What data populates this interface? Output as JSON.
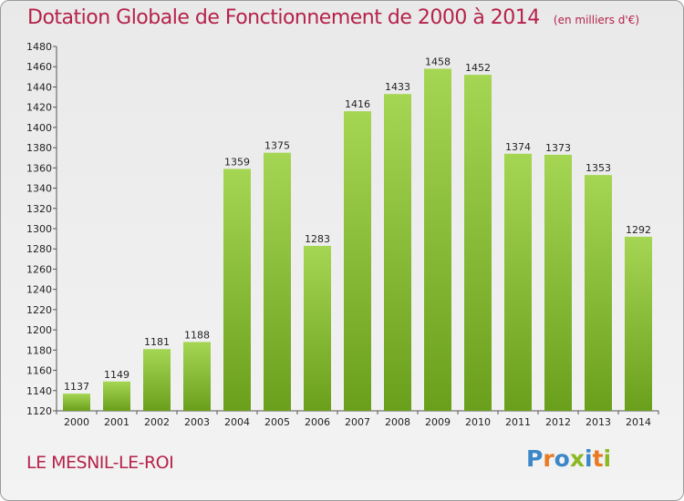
{
  "header": {
    "title": "Dotation Globale de Fonctionnement de 2000 à 2014",
    "unit": "(en milliers d'€)"
  },
  "footer": {
    "town": "LE MESNIL-LE-ROI",
    "logo": "Proxiti"
  },
  "colors": {
    "title": "#b5224b",
    "bar_light": "#a5d653",
    "bar_dark": "#6a9f1c",
    "logo_letters": [
      "#3b87c8",
      "#e77a22",
      "#3b87c8",
      "#8bb824",
      "#3b87c8",
      "#e77a22",
      "#8bb824"
    ]
  },
  "chart_data": {
    "type": "bar",
    "title": "Dotation Globale de Fonctionnement de 2000 à 2014",
    "subtitle": "(en milliers d'€)",
    "categories": [
      "2000",
      "2001",
      "2002",
      "2003",
      "2004",
      "2005",
      "2006",
      "2007",
      "2008",
      "2009",
      "2010",
      "2011",
      "2012",
      "2013",
      "2014"
    ],
    "values": [
      1137,
      1149,
      1181,
      1188,
      1359,
      1375,
      1283,
      1416,
      1433,
      1458,
      1452,
      1374,
      1373,
      1353,
      1292
    ],
    "ylim": [
      1120,
      1480
    ],
    "yticks": [
      1120,
      1140,
      1160,
      1180,
      1200,
      1220,
      1240,
      1260,
      1280,
      1300,
      1320,
      1340,
      1360,
      1380,
      1400,
      1420,
      1440,
      1460,
      1480
    ],
    "grid": false,
    "data_labels": true
  }
}
